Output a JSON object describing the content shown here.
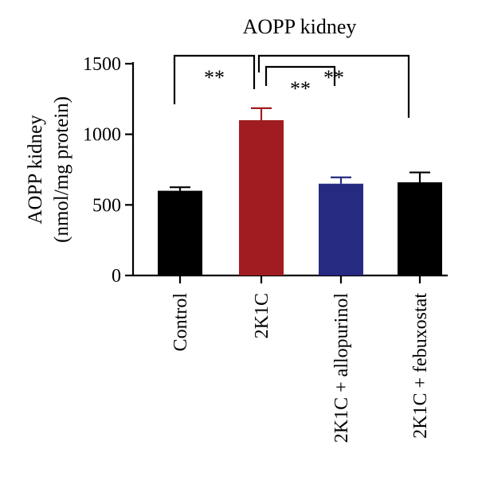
{
  "chart_data": {
    "type": "bar",
    "title": "AOPP kidney",
    "ylabel_line1": "AOPP kidney",
    "ylabel_line2": "(nmol/mg protein)",
    "xlabel": "",
    "ylim": [
      0,
      1500
    ],
    "yticks": [
      "0",
      "500",
      "1000",
      "1500"
    ],
    "ytick_values": [
      0,
      500,
      1000,
      1500
    ],
    "grid": false,
    "categories": [
      "Control",
      "2K1C",
      "2K1C + allopurinol",
      "2K1C + febuxostat"
    ],
    "values": [
      600,
      1100,
      650,
      660
    ],
    "errors": [
      25,
      85,
      45,
      70
    ],
    "colors": [
      "#000000",
      "#a01c20",
      "#262a80",
      "#000000"
    ],
    "error_colors": [
      "#000000",
      "#a01c20",
      "#262a80",
      "#000000"
    ],
    "significance": [
      {
        "from": 0,
        "to": 1,
        "label": "**"
      },
      {
        "from": 1,
        "to": 2,
        "label": "**"
      },
      {
        "from": 1,
        "to": 3,
        "label": "**"
      }
    ]
  }
}
